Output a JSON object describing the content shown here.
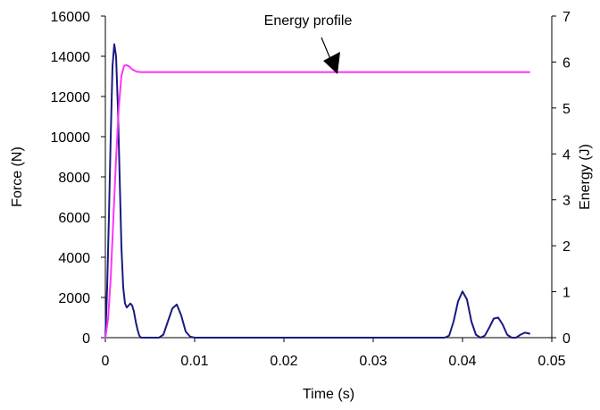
{
  "chart_data": {
    "type": "line",
    "title": "",
    "xlabel": "Time (s)",
    "ylabel_left": "Force (N)",
    "ylabel_right": "Energy (J)",
    "xlim": [
      0,
      0.05
    ],
    "ylim_left": [
      0,
      16000
    ],
    "ylim_right": [
      0,
      7
    ],
    "x_ticks": [
      "0",
      "0.01",
      "0.02",
      "0.03",
      "0.04",
      "0.05"
    ],
    "y_left_ticks": [
      "0",
      "2000",
      "4000",
      "6000",
      "8000",
      "10000",
      "12000",
      "14000",
      "16000"
    ],
    "y_right_ticks": [
      "0",
      "1",
      "2",
      "3",
      "4",
      "5",
      "6",
      "7"
    ],
    "grid": false,
    "legend": "none",
    "annotation": {
      "text": "Energy profile",
      "points_to": [
        0.0262,
        5.78
      ]
    },
    "series": [
      {
        "axis": "left",
        "color": "#1a1a80",
        "x": [
          0,
          0.0002,
          0.0004,
          0.0006,
          0.0008,
          0.001,
          0.0012,
          0.0014,
          0.0016,
          0.0018,
          0.002,
          0.0022,
          0.0024,
          0.0026,
          0.0028,
          0.003,
          0.0032,
          0.0034,
          0.0036,
          0.0038,
          0.004,
          0.0045,
          0.005,
          0.0055,
          0.006,
          0.0065,
          0.007,
          0.0075,
          0.008,
          0.0085,
          0.009,
          0.0095,
          0.01,
          0.015,
          0.02,
          0.025,
          0.03,
          0.035,
          0.038,
          0.0385,
          0.039,
          0.0395,
          0.04,
          0.0405,
          0.041,
          0.0415,
          0.042,
          0.0425,
          0.043,
          0.0435,
          0.044,
          0.0445,
          0.045,
          0.0455,
          0.046,
          0.0465,
          0.047,
          0.0475
        ],
        "y": [
          0,
          2500,
          6000,
          10000,
          13500,
          14600,
          14000,
          11500,
          8000,
          4500,
          2500,
          1700,
          1500,
          1600,
          1700,
          1600,
          1300,
          800,
          400,
          100,
          0,
          0,
          0,
          0,
          0,
          150,
          800,
          1450,
          1650,
          1100,
          300,
          50,
          0,
          0,
          0,
          0,
          0,
          0,
          0,
          100,
          800,
          1800,
          2300,
          1900,
          800,
          150,
          0,
          100,
          500,
          950,
          1000,
          650,
          150,
          0,
          0,
          150,
          250,
          200
        ]
      },
      {
        "axis": "right",
        "color": "#ff33ff",
        "x": [
          0,
          0.0003,
          0.0006,
          0.0009,
          0.0012,
          0.0015,
          0.0018,
          0.0021,
          0.0024,
          0.0027,
          0.003,
          0.0035,
          0.004,
          0.01,
          0.02,
          0.03,
          0.04,
          0.0475
        ],
        "y": [
          0,
          0.4,
          1.3,
          2.6,
          3.9,
          5.0,
          5.7,
          5.92,
          5.93,
          5.9,
          5.84,
          5.79,
          5.78,
          5.78,
          5.78,
          5.78,
          5.78,
          5.78
        ]
      }
    ]
  }
}
